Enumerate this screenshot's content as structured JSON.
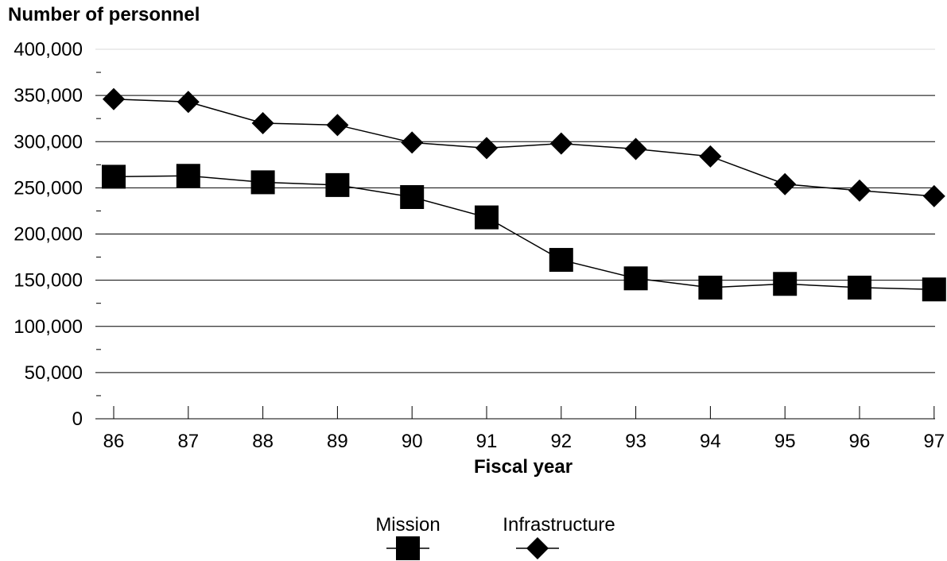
{
  "chart_data": {
    "type": "line",
    "ylabel": "Number of personnel",
    "xlabel": "Fiscal year",
    "categories": [
      "86",
      "87",
      "88",
      "89",
      "90",
      "91",
      "92",
      "93",
      "94",
      "95",
      "96",
      "97"
    ],
    "ylim": [
      0,
      400000
    ],
    "y_ticks": [
      0,
      50000,
      100000,
      150000,
      200000,
      250000,
      300000,
      350000,
      400000
    ],
    "y_tick_labels": [
      "0",
      "50,000",
      "100,000",
      "150,000",
      "200,000",
      "250,000",
      "300,000",
      "350,000",
      "400,000"
    ],
    "grid": true,
    "legend_position": "bottom",
    "series": [
      {
        "name": "Mission",
        "marker": "square",
        "values": [
          262000,
          263000,
          256000,
          253000,
          240000,
          218000,
          172000,
          152000,
          142000,
          146000,
          142000,
          140000
        ]
      },
      {
        "name": "Infrastructure",
        "marker": "diamond",
        "values": [
          346000,
          343000,
          320000,
          318000,
          299000,
          293000,
          298000,
          292000,
          284000,
          254000,
          247000,
          241000
        ]
      }
    ]
  },
  "colors": {
    "line": "#000000",
    "marker": "#000000",
    "grid": "#000000"
  }
}
